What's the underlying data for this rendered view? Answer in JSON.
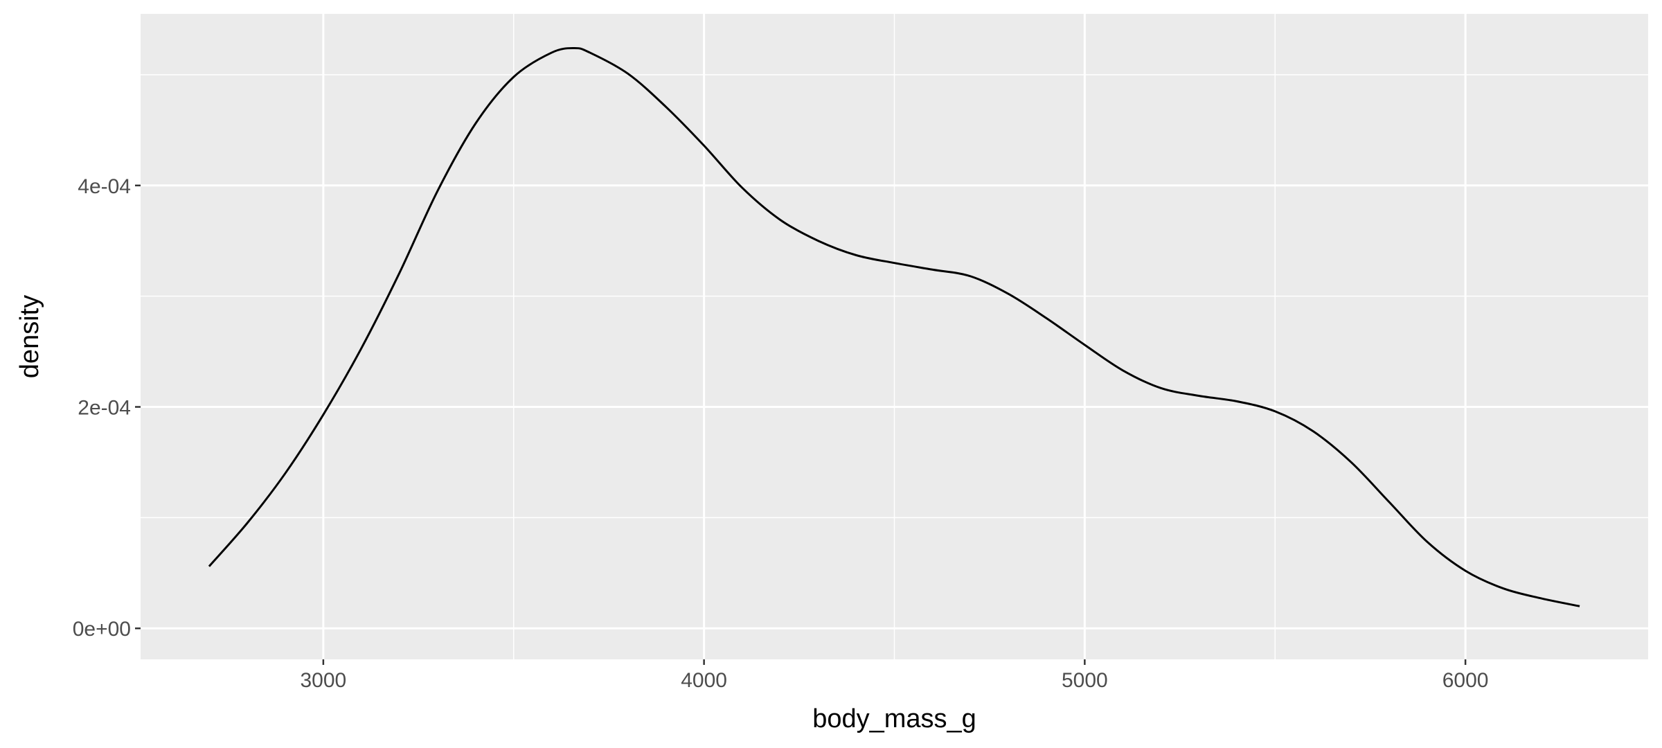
{
  "chart_data": {
    "type": "line",
    "title": "",
    "xlabel": "body_mass_g",
    "ylabel": "density",
    "xlim": [
      2520,
      6480
    ],
    "ylim": [
      -2.8e-05,
      0.000555
    ],
    "x_ticks": [
      3000,
      4000,
      5000,
      6000
    ],
    "x_tick_labels": [
      "3000",
      "4000",
      "5000",
      "6000"
    ],
    "y_ticks": [
      0,
      0.0002,
      0.0004
    ],
    "y_tick_labels": [
      "0e+00",
      "2e-04",
      "4e-04"
    ],
    "x_minor_ticks": [
      2500,
      3500,
      4500,
      5500,
      6500
    ],
    "y_minor_ticks": [
      0.0001,
      0.0003,
      0.0005
    ],
    "grid": true,
    "legend": "none",
    "colors": {
      "panel": "#ebebeb",
      "grid": "#ffffff",
      "line": "#000000",
      "tick_text": "#4d4d4d"
    },
    "series": [
      {
        "x": [
          2700,
          2800,
          2900,
          3000,
          3100,
          3200,
          3300,
          3400,
          3500,
          3600,
          3660,
          3700,
          3800,
          3900,
          4000,
          4100,
          4200,
          4300,
          4400,
          4500,
          4600,
          4700,
          4800,
          4900,
          5000,
          5100,
          5200,
          5300,
          5400,
          5500,
          5600,
          5700,
          5800,
          5900,
          6000,
          6100,
          6200,
          6300
        ],
        "y": [
          5.6e-05,
          9.5e-05,
          0.00014,
          0.000193,
          0.000253,
          0.000321,
          0.000395,
          0.000456,
          0.000498,
          0.00052,
          0.000524,
          0.00052,
          0.000501,
          0.000471,
          0.000436,
          0.000398,
          0.000369,
          0.00035,
          0.000337,
          0.00033,
          0.000324,
          0.000318,
          0.000302,
          0.00028,
          0.000256,
          0.000233,
          0.000217,
          0.00021,
          0.000205,
          0.000196,
          0.000178,
          0.00015,
          0.000114,
          7.8e-05,
          5.2e-05,
          3.6e-05,
          2.7e-05,
          2e-05
        ]
      }
    ]
  }
}
